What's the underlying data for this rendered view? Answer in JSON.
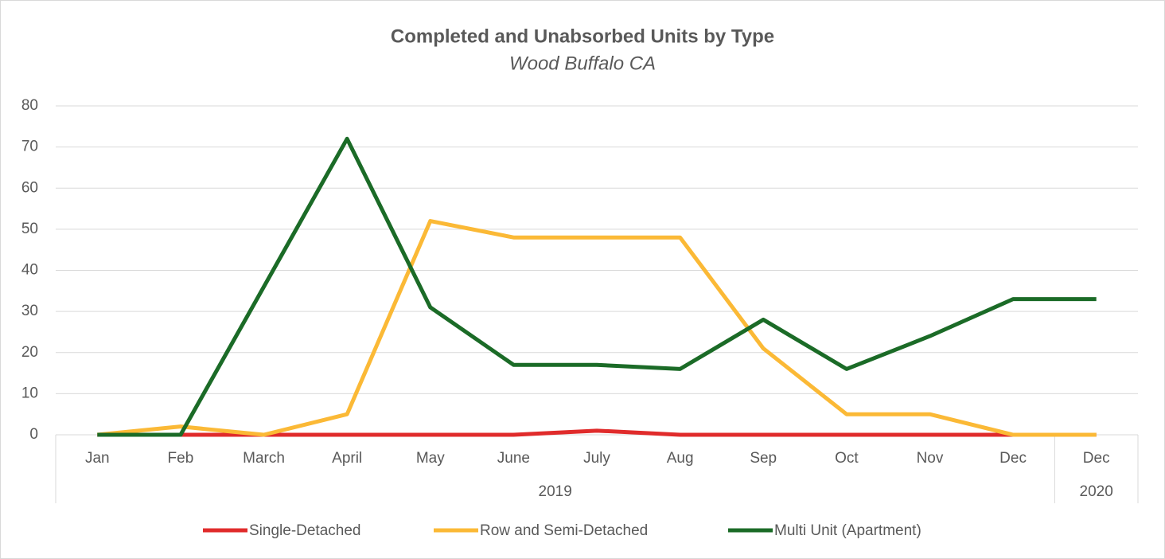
{
  "chart_data": {
    "type": "line",
    "title": "Completed and Unabsorbed Units by Type",
    "subtitle": "Wood Buffalo CA",
    "categories": [
      "Jan",
      "Feb",
      "March",
      "April",
      "May",
      "June",
      "July",
      "Aug",
      "Sep",
      "Oct",
      "Nov",
      "Dec",
      "Dec"
    ],
    "category_groups": [
      {
        "label": "2019",
        "span": 12
      },
      {
        "label": "2020",
        "span": 1
      }
    ],
    "series": [
      {
        "name": "Single-Detached",
        "color": "#e02b2b",
        "values": [
          0,
          0,
          0,
          0,
          0,
          0,
          1,
          0,
          0,
          0,
          0,
          0,
          0
        ]
      },
      {
        "name": "Row and Semi-Detached",
        "color": "#fbb936",
        "values": [
          0,
          2,
          0,
          5,
          52,
          48,
          48,
          48,
          21,
          5,
          5,
          0,
          0
        ]
      },
      {
        "name": "Multi Unit (Apartment)",
        "color": "#1b6b27",
        "values": [
          0,
          0,
          36,
          72,
          31,
          17,
          17,
          16,
          28,
          16,
          24,
          33,
          33
        ]
      }
    ],
    "ylim": [
      0,
      80
    ],
    "yticks": [
      0,
      10,
      20,
      30,
      40,
      50,
      60,
      70,
      80
    ],
    "grid": true,
    "legend": "bottom"
  }
}
